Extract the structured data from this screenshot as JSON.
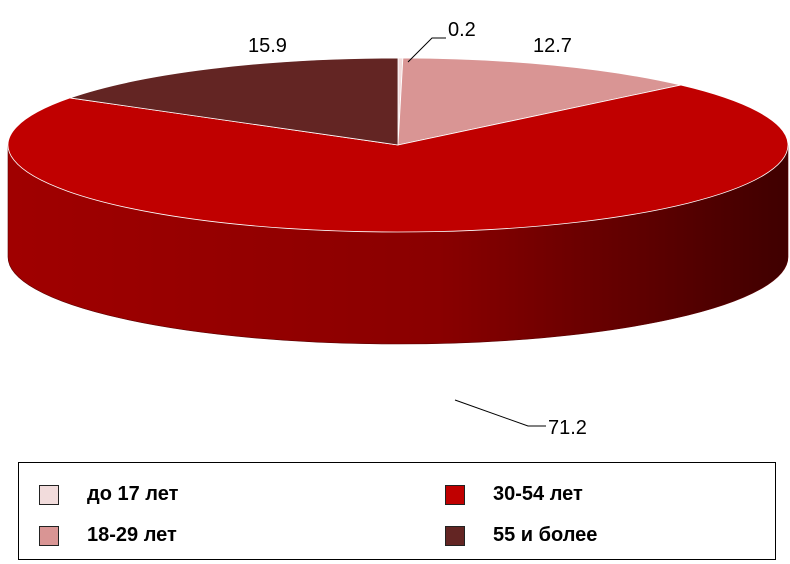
{
  "chart_data": {
    "type": "pie",
    "categories": [
      "до 17 лет",
      "18-29 лет",
      "30-54 лет",
      "55 и более"
    ],
    "values": [
      0.2,
      12.7,
      71.2,
      15.9
    ],
    "data_labels": [
      "0.2",
      "12.7",
      "71.2",
      "15.9"
    ],
    "colors": [
      "#f2dcdc",
      "#d99594",
      "#c00000",
      "#632523"
    ],
    "style": "3d",
    "legend_position": "bottom",
    "title": ""
  },
  "legend": {
    "items": [
      {
        "label": "до 17 лет",
        "color": "#f2dcdc"
      },
      {
        "label": "30-54 лет",
        "color": "#c00000"
      },
      {
        "label": "18-29 лет",
        "color": "#d99594"
      },
      {
        "label": "55 и более",
        "color": "#632523"
      }
    ]
  }
}
